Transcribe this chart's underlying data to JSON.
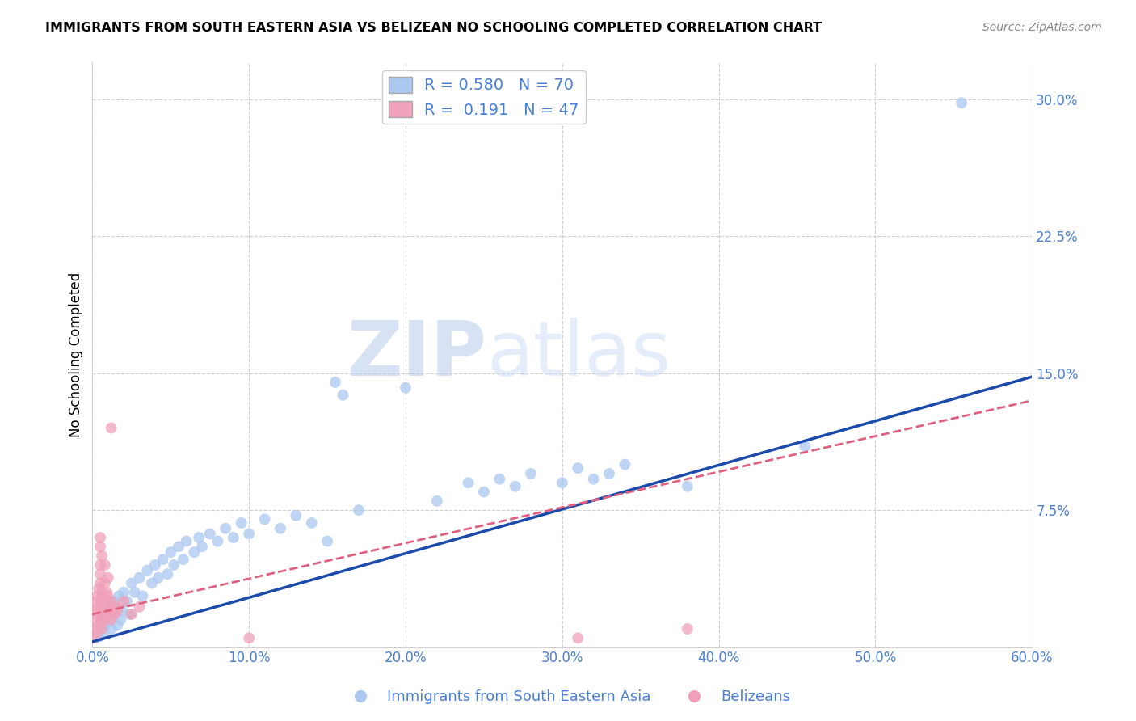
{
  "title": "IMMIGRANTS FROM SOUTH EASTERN ASIA VS BELIZEAN NO SCHOOLING COMPLETED CORRELATION CHART",
  "source": "Source: ZipAtlas.com",
  "ylabel": "No Schooling Completed",
  "xlim": [
    0.0,
    0.6
  ],
  "ylim": [
    0.0,
    0.32
  ],
  "xticks": [
    0.0,
    0.1,
    0.2,
    0.3,
    0.4,
    0.5,
    0.6
  ],
  "yticks": [
    0.0,
    0.075,
    0.15,
    0.225,
    0.3
  ],
  "xtick_labels": [
    "0.0%",
    "10.0%",
    "20.0%",
    "30.0%",
    "40.0%",
    "50.0%",
    "60.0%"
  ],
  "ytick_labels": [
    "",
    "7.5%",
    "15.0%",
    "22.5%",
    "30.0%"
  ],
  "tick_color": "#4a7fd4",
  "legend_labels": [
    "Immigrants from South Eastern Asia",
    "Belizeans"
  ],
  "blue_color": "#aac8f0",
  "pink_color": "#f0a0b8",
  "blue_line_color": "#1a4aaa",
  "pink_line_color": "#e06080",
  "watermark_text": "ZIPatlas",
  "R_blue": 0.58,
  "N_blue": 70,
  "R_pink": 0.191,
  "N_pink": 47,
  "blue_line_x0": 0.0,
  "blue_line_y0": 0.003,
  "blue_line_x1": 0.6,
  "blue_line_y1": 0.148,
  "pink_line_x0": 0.0,
  "pink_line_y0": 0.018,
  "pink_line_x1": 0.6,
  "pink_line_y1": 0.135,
  "blue_scatter": [
    [
      0.002,
      0.005
    ],
    [
      0.003,
      0.008
    ],
    [
      0.004,
      0.01
    ],
    [
      0.005,
      0.012
    ],
    [
      0.005,
      0.006
    ],
    [
      0.006,
      0.015
    ],
    [
      0.007,
      0.008
    ],
    [
      0.008,
      0.018
    ],
    [
      0.008,
      0.012
    ],
    [
      0.009,
      0.02
    ],
    [
      0.01,
      0.015
    ],
    [
      0.011,
      0.022
    ],
    [
      0.012,
      0.01
    ],
    [
      0.013,
      0.018
    ],
    [
      0.014,
      0.025
    ],
    [
      0.015,
      0.02
    ],
    [
      0.016,
      0.012
    ],
    [
      0.017,
      0.028
    ],
    [
      0.018,
      0.015
    ],
    [
      0.019,
      0.02
    ],
    [
      0.02,
      0.03
    ],
    [
      0.022,
      0.025
    ],
    [
      0.024,
      0.018
    ],
    [
      0.025,
      0.035
    ],
    [
      0.027,
      0.03
    ],
    [
      0.03,
      0.038
    ],
    [
      0.032,
      0.028
    ],
    [
      0.035,
      0.042
    ],
    [
      0.038,
      0.035
    ],
    [
      0.04,
      0.045
    ],
    [
      0.042,
      0.038
    ],
    [
      0.045,
      0.048
    ],
    [
      0.048,
      0.04
    ],
    [
      0.05,
      0.052
    ],
    [
      0.052,
      0.045
    ],
    [
      0.055,
      0.055
    ],
    [
      0.058,
      0.048
    ],
    [
      0.06,
      0.058
    ],
    [
      0.065,
      0.052
    ],
    [
      0.068,
      0.06
    ],
    [
      0.07,
      0.055
    ],
    [
      0.075,
      0.062
    ],
    [
      0.08,
      0.058
    ],
    [
      0.085,
      0.065
    ],
    [
      0.09,
      0.06
    ],
    [
      0.095,
      0.068
    ],
    [
      0.1,
      0.062
    ],
    [
      0.11,
      0.07
    ],
    [
      0.12,
      0.065
    ],
    [
      0.13,
      0.072
    ],
    [
      0.14,
      0.068
    ],
    [
      0.15,
      0.058
    ],
    [
      0.155,
      0.145
    ],
    [
      0.16,
      0.138
    ],
    [
      0.17,
      0.075
    ],
    [
      0.2,
      0.142
    ],
    [
      0.22,
      0.08
    ],
    [
      0.24,
      0.09
    ],
    [
      0.25,
      0.085
    ],
    [
      0.26,
      0.092
    ],
    [
      0.27,
      0.088
    ],
    [
      0.28,
      0.095
    ],
    [
      0.3,
      0.09
    ],
    [
      0.31,
      0.098
    ],
    [
      0.32,
      0.092
    ],
    [
      0.33,
      0.095
    ],
    [
      0.34,
      0.1
    ],
    [
      0.38,
      0.088
    ],
    [
      0.455,
      0.11
    ],
    [
      0.555,
      0.298
    ]
  ],
  "pink_scatter": [
    [
      0.001,
      0.005
    ],
    [
      0.001,
      0.01
    ],
    [
      0.002,
      0.015
    ],
    [
      0.002,
      0.02
    ],
    [
      0.002,
      0.025
    ],
    [
      0.003,
      0.008
    ],
    [
      0.003,
      0.018
    ],
    [
      0.003,
      0.028
    ],
    [
      0.004,
      0.012
    ],
    [
      0.004,
      0.022
    ],
    [
      0.004,
      0.032
    ],
    [
      0.005,
      0.015
    ],
    [
      0.005,
      0.025
    ],
    [
      0.005,
      0.035
    ],
    [
      0.005,
      0.04
    ],
    [
      0.005,
      0.045
    ],
    [
      0.005,
      0.055
    ],
    [
      0.005,
      0.06
    ],
    [
      0.006,
      0.01
    ],
    [
      0.006,
      0.02
    ],
    [
      0.006,
      0.03
    ],
    [
      0.006,
      0.05
    ],
    [
      0.007,
      0.018
    ],
    [
      0.007,
      0.028
    ],
    [
      0.008,
      0.015
    ],
    [
      0.008,
      0.025
    ],
    [
      0.008,
      0.035
    ],
    [
      0.008,
      0.045
    ],
    [
      0.009,
      0.02
    ],
    [
      0.009,
      0.03
    ],
    [
      0.01,
      0.018
    ],
    [
      0.01,
      0.028
    ],
    [
      0.01,
      0.038
    ],
    [
      0.011,
      0.022
    ],
    [
      0.012,
      0.015
    ],
    [
      0.012,
      0.025
    ],
    [
      0.013,
      0.02
    ],
    [
      0.014,
      0.018
    ],
    [
      0.015,
      0.022
    ],
    [
      0.016,
      0.02
    ],
    [
      0.02,
      0.025
    ],
    [
      0.025,
      0.018
    ],
    [
      0.03,
      0.022
    ],
    [
      0.012,
      0.12
    ],
    [
      0.1,
      0.005
    ],
    [
      0.31,
      0.005
    ],
    [
      0.38,
      0.01
    ]
  ]
}
